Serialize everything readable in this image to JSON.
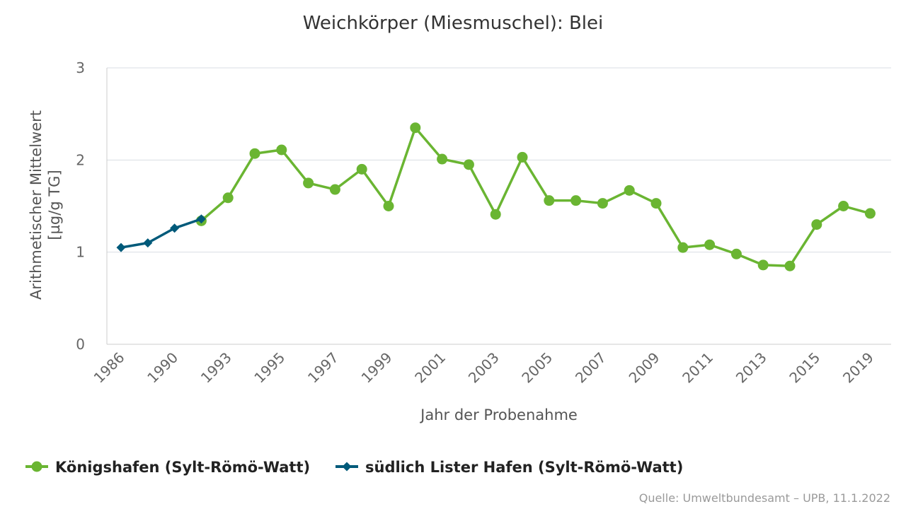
{
  "chart_data": {
    "type": "line",
    "title": "Weichkörper (Miesmuschel): Blei",
    "xlabel": "Jahr der Probenahme",
    "ylabel": "Arithmetischer Mittelwert",
    "ylabel_unit": "[µg/g TG]",
    "ylim": [
      0,
      3
    ],
    "yticks": [
      0,
      1,
      2,
      3
    ],
    "x": [
      1986,
      1988,
      1990,
      1992,
      1993,
      1994,
      1995,
      1996,
      1997,
      1998,
      1999,
      2000,
      2001,
      2002,
      2003,
      2004,
      2005,
      2006,
      2007,
      2008,
      2009,
      2010,
      2011,
      2012,
      2013,
      2014,
      2015,
      2016,
      2019
    ],
    "xtick_labels": [
      "1986",
      "1990",
      "1993",
      "1995",
      "1997",
      "1999",
      "2001",
      "2003",
      "2005",
      "2007",
      "2009",
      "2011",
      "2013",
      "2015",
      "2019"
    ],
    "xtick_index": [
      0,
      2,
      4,
      6,
      8,
      10,
      12,
      14,
      16,
      18,
      20,
      22,
      24,
      26,
      28
    ],
    "series": [
      {
        "name": "Königshafen (Sylt-Römö-Watt)",
        "color": "#6ab532",
        "marker": "circle",
        "points": [
          {
            "i": 3,
            "y": 1.34
          },
          {
            "i": 4,
            "y": 1.59
          },
          {
            "i": 5,
            "y": 2.07
          },
          {
            "i": 6,
            "y": 2.11
          },
          {
            "i": 7,
            "y": 1.75
          },
          {
            "i": 8,
            "y": 1.68
          },
          {
            "i": 9,
            "y": 1.9
          },
          {
            "i": 10,
            "y": 1.5
          },
          {
            "i": 11,
            "y": 2.35
          },
          {
            "i": 12,
            "y": 2.01
          },
          {
            "i": 13,
            "y": 1.95
          },
          {
            "i": 14,
            "y": 1.41
          },
          {
            "i": 15,
            "y": 2.03
          },
          {
            "i": 16,
            "y": 1.56
          },
          {
            "i": 17,
            "y": 1.56
          },
          {
            "i": 18,
            "y": 1.53
          },
          {
            "i": 19,
            "y": 1.67
          },
          {
            "i": 20,
            "y": 1.53
          },
          {
            "i": 21,
            "y": 1.05
          },
          {
            "i": 22,
            "y": 1.08
          },
          {
            "i": 23,
            "y": 0.98
          },
          {
            "i": 24,
            "y": 0.86
          },
          {
            "i": 25,
            "y": 0.85
          },
          {
            "i": 26,
            "y": 1.3
          },
          {
            "i": 27,
            "y": 1.5
          },
          {
            "i": 28,
            "y": 1.42
          }
        ]
      },
      {
        "name": "südlich Lister Hafen (Sylt-Römö-Watt)",
        "color": "#005a7a",
        "marker": "diamond",
        "points": [
          {
            "i": 0,
            "y": 1.05
          },
          {
            "i": 1,
            "y": 1.1
          },
          {
            "i": 2,
            "y": 1.26
          },
          {
            "i": 3,
            "y": 1.36
          }
        ]
      }
    ],
    "grid": true,
    "legend_position": "bottom-left",
    "source": "Quelle: Umweltbundesamt – UPB, 11.1.2022"
  }
}
